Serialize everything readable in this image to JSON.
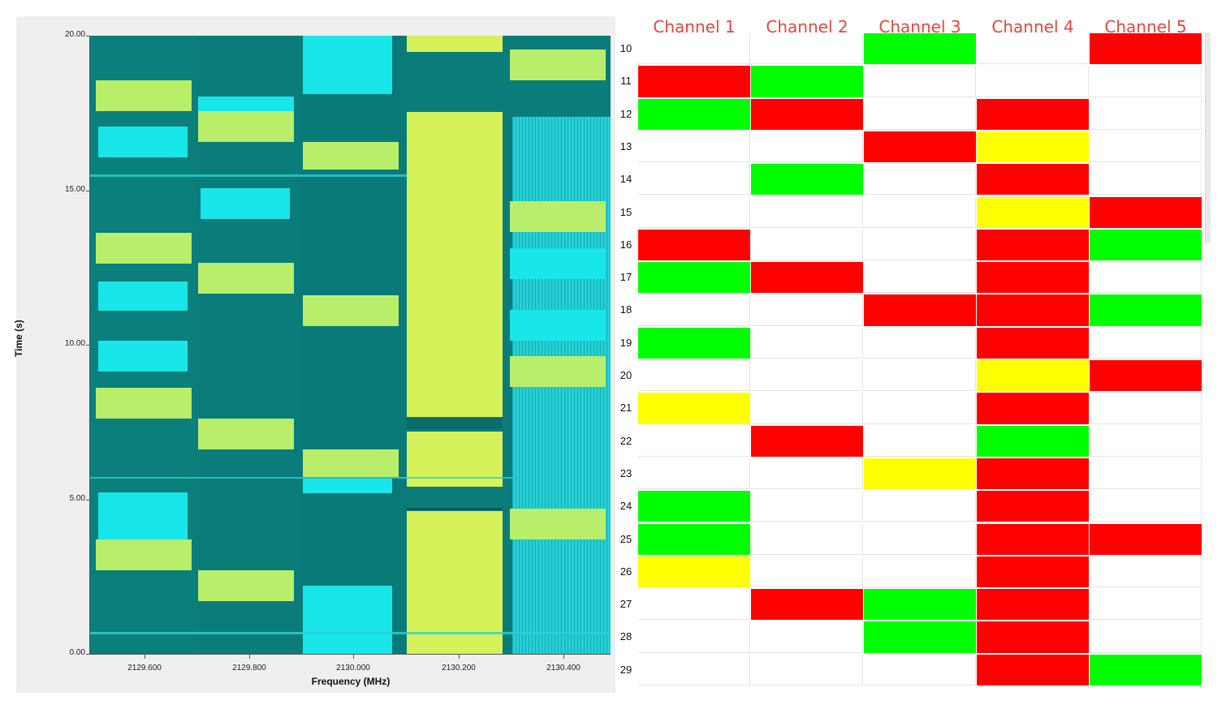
{
  "waterfall": {
    "y_axis_label": "Time (s)",
    "x_axis_label": "Frequency (MHz)",
    "y_ticks": [
      "0.00",
      "5.00",
      "10.00",
      "15.00",
      "20.00"
    ],
    "x_ticks": [
      "2129.600",
      "2129.800",
      "2130.000",
      "2130.200",
      "2130.400"
    ],
    "colors": {
      "background": "#007a78",
      "cyan": "#19e6e8",
      "yellow_green": "#b8ee6a",
      "bright": "#d6f25a"
    }
  },
  "grid": {
    "headers": [
      "Channel 1",
      "Channel 2",
      "Channel 3",
      "Channel 4",
      "Channel 5"
    ],
    "colors": {
      "R": "#ff0000",
      "G": "#00ff00",
      "Y": "#ffff00",
      "W": "#ffffff"
    },
    "rows": [
      {
        "label": "10",
        "cells": [
          "W",
          "W",
          "G",
          "W",
          "R"
        ]
      },
      {
        "label": "11",
        "cells": [
          "R",
          "G",
          "W",
          "W",
          "W"
        ]
      },
      {
        "label": "12",
        "cells": [
          "G",
          "R",
          "W",
          "R",
          "W"
        ]
      },
      {
        "label": "13",
        "cells": [
          "W",
          "W",
          "R",
          "Y",
          "W"
        ]
      },
      {
        "label": "14",
        "cells": [
          "W",
          "G",
          "W",
          "R",
          "W"
        ]
      },
      {
        "label": "15",
        "cells": [
          "W",
          "W",
          "W",
          "Y",
          "R"
        ]
      },
      {
        "label": "16",
        "cells": [
          "R",
          "W",
          "W",
          "R",
          "G"
        ]
      },
      {
        "label": "17",
        "cells": [
          "G",
          "R",
          "W",
          "R",
          "W"
        ]
      },
      {
        "label": "18",
        "cells": [
          "W",
          "W",
          "R",
          "R",
          "G"
        ]
      },
      {
        "label": "19",
        "cells": [
          "G",
          "W",
          "W",
          "R",
          "W"
        ]
      },
      {
        "label": "20",
        "cells": [
          "W",
          "W",
          "W",
          "Y",
          "R"
        ]
      },
      {
        "label": "21",
        "cells": [
          "Y",
          "W",
          "W",
          "R",
          "W"
        ]
      },
      {
        "label": "22",
        "cells": [
          "W",
          "R",
          "W",
          "G",
          "W"
        ]
      },
      {
        "label": "23",
        "cells": [
          "W",
          "W",
          "Y",
          "R",
          "W"
        ]
      },
      {
        "label": "24",
        "cells": [
          "G",
          "W",
          "W",
          "R",
          "W"
        ]
      },
      {
        "label": "25",
        "cells": [
          "G",
          "W",
          "W",
          "R",
          "R"
        ]
      },
      {
        "label": "26",
        "cells": [
          "Y",
          "W",
          "W",
          "R",
          "W"
        ]
      },
      {
        "label": "27",
        "cells": [
          "W",
          "R",
          "G",
          "R",
          "W"
        ]
      },
      {
        "label": "28",
        "cells": [
          "W",
          "W",
          "G",
          "R",
          "W"
        ]
      },
      {
        "label": "29",
        "cells": [
          "W",
          "W",
          "W",
          "R",
          "G"
        ]
      }
    ]
  }
}
